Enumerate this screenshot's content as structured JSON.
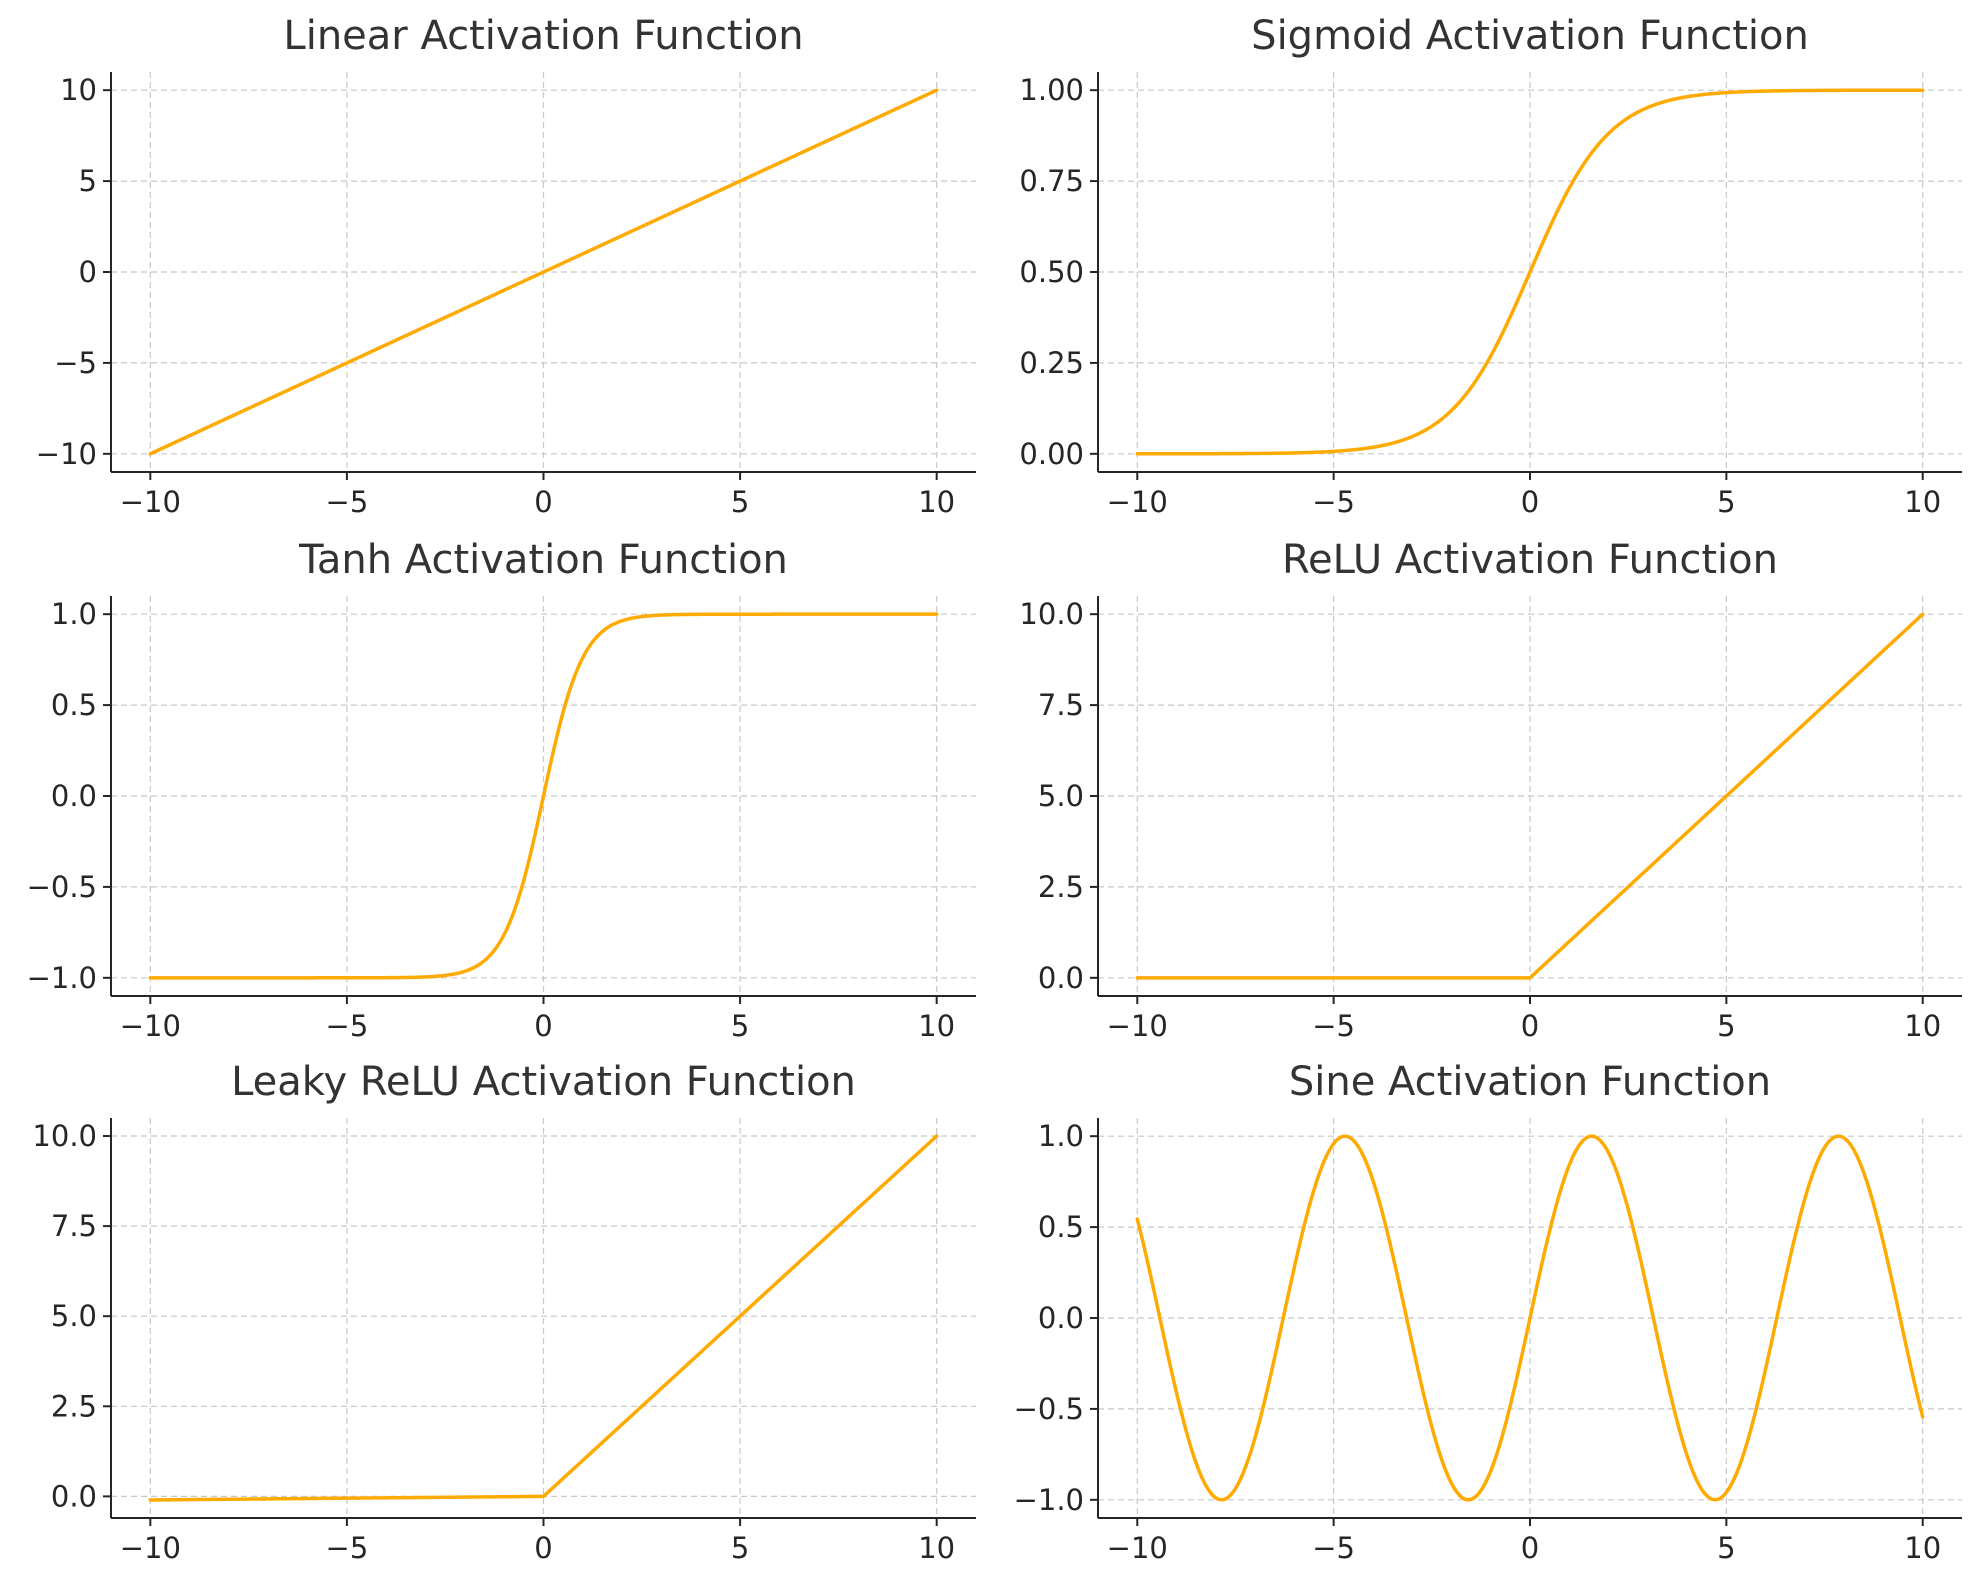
{
  "theme": {
    "line_color": "#FFAA00"
  },
  "chart_data": [
    {
      "type": "line",
      "title": "Linear Activation Function",
      "function": "linear",
      "xlabel": "",
      "ylabel": "",
      "xlim": [
        -11,
        11
      ],
      "ylim": [
        -11,
        11
      ],
      "xticks": [
        -10,
        -5,
        0,
        5,
        10
      ],
      "xtick_labels": [
        "−10",
        "−5",
        "0",
        "5",
        "10"
      ],
      "yticks": [
        -10,
        -5,
        0,
        5,
        10
      ],
      "ytick_labels": [
        "−10",
        "−5",
        "0",
        "5",
        "10"
      ],
      "grid": true,
      "x": [
        -10,
        -5,
        0,
        5,
        10
      ],
      "y": [
        -10,
        -5,
        0,
        5,
        10
      ]
    },
    {
      "type": "line",
      "title": "Sigmoid Activation Function",
      "function": "sigmoid",
      "xlabel": "",
      "ylabel": "",
      "xlim": [
        -11,
        11
      ],
      "ylim": [
        -0.05,
        1.05
      ],
      "xticks": [
        -10,
        -5,
        0,
        5,
        10
      ],
      "xtick_labels": [
        "−10",
        "−5",
        "0",
        "5",
        "10"
      ],
      "yticks": [
        0,
        0.25,
        0.5,
        0.75,
        1
      ],
      "ytick_labels": [
        "0.00",
        "0.25",
        "0.50",
        "0.75",
        "1.00"
      ],
      "grid": true,
      "x": [
        -10,
        -5,
        -2,
        0,
        2,
        5,
        10
      ],
      "y": [
        0.0,
        0.007,
        0.119,
        0.5,
        0.881,
        0.993,
        1.0
      ]
    },
    {
      "type": "line",
      "title": "Tanh Activation Function",
      "function": "tanh",
      "xlabel": "",
      "ylabel": "",
      "xlim": [
        -11,
        11
      ],
      "ylim": [
        -1.1,
        1.1
      ],
      "xticks": [
        -10,
        -5,
        0,
        5,
        10
      ],
      "xtick_labels": [
        "−10",
        "−5",
        "0",
        "5",
        "10"
      ],
      "yticks": [
        -1,
        -0.5,
        0,
        0.5,
        1
      ],
      "ytick_labels": [
        "−1.0",
        "−0.5",
        "0.0",
        "0.5",
        "1.0"
      ],
      "grid": true,
      "x": [
        -10,
        -2,
        -1,
        0,
        1,
        2,
        10
      ],
      "y": [
        -1.0,
        -0.964,
        -0.762,
        0.0,
        0.762,
        0.964,
        1.0
      ]
    },
    {
      "type": "line",
      "title": "ReLU Activation Function",
      "function": "relu",
      "xlabel": "",
      "ylabel": "",
      "xlim": [
        -11,
        11
      ],
      "ylim": [
        -0.5,
        10.5
      ],
      "xticks": [
        -10,
        -5,
        0,
        5,
        10
      ],
      "xtick_labels": [
        "−10",
        "−5",
        "0",
        "5",
        "10"
      ],
      "yticks": [
        0,
        2.5,
        5,
        7.5,
        10
      ],
      "ytick_labels": [
        "0.0",
        "2.5",
        "5.0",
        "7.5",
        "10.0"
      ],
      "grid": true,
      "x": [
        -10,
        0,
        5,
        10
      ],
      "y": [
        0,
        0,
        5,
        10
      ]
    },
    {
      "type": "line",
      "title": "Leaky ReLU Activation Function",
      "function": "leaky_relu",
      "xlabel": "",
      "ylabel": "",
      "xlim": [
        -11,
        11
      ],
      "ylim": [
        -0.6,
        10.5
      ],
      "xticks": [
        -10,
        -5,
        0,
        5,
        10
      ],
      "xtick_labels": [
        "−10",
        "−5",
        "0",
        "5",
        "10"
      ],
      "yticks": [
        0,
        2.5,
        5,
        7.5,
        10
      ],
      "ytick_labels": [
        "0.0",
        "2.5",
        "5.0",
        "7.5",
        "10.0"
      ],
      "grid": true,
      "x": [
        -10,
        0,
        5,
        10
      ],
      "y": [
        -0.1,
        0,
        5,
        10
      ]
    },
    {
      "type": "line",
      "title": "Sine Activation Function",
      "function": "sine",
      "xlabel": "",
      "ylabel": "",
      "xlim": [
        -11,
        11
      ],
      "ylim": [
        -1.1,
        1.1
      ],
      "xticks": [
        -10,
        -5,
        0,
        5,
        10
      ],
      "xtick_labels": [
        "−10",
        "−5",
        "0",
        "5",
        "10"
      ],
      "yticks": [
        -1,
        -0.5,
        0,
        0.5,
        1
      ],
      "ytick_labels": [
        "−1.0",
        "−0.5",
        "0.0",
        "0.5",
        "1.0"
      ],
      "grid": true,
      "x": [
        -10,
        -7.85,
        -4.71,
        -1.57,
        0,
        1.57,
        4.71,
        7.85,
        10
      ],
      "y": [
        0.544,
        -1.0,
        1.0,
        -1.0,
        0.0,
        1.0,
        -1.0,
        1.0,
        -0.544
      ]
    }
  ]
}
